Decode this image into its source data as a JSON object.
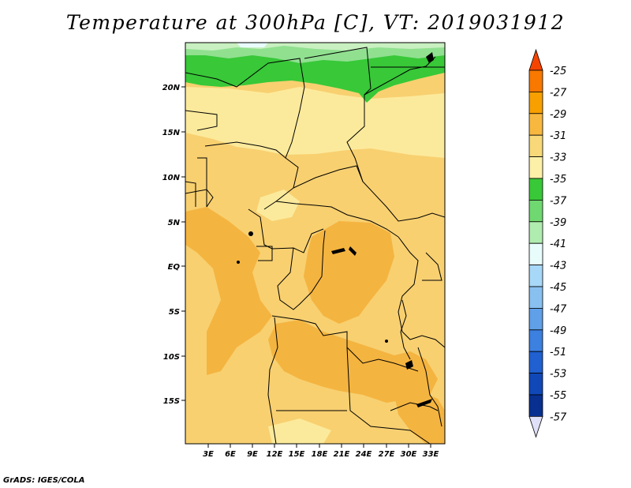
{
  "title": "Temperature at 300hPa [C], VT: 2019031912",
  "credit": "GrADS: IGES/COLA",
  "map": {
    "lat_ticks": [
      "20N",
      "15N",
      "10N",
      "5N",
      "EQ",
      "5S",
      "10S",
      "15S"
    ],
    "lon_ticks": [
      "3E",
      "6E",
      "9E",
      "12E",
      "15E",
      "18E",
      "21E",
      "24E",
      "27E",
      "30E",
      "33E"
    ]
  },
  "colorbar": {
    "labels": [
      "-25",
      "-27",
      "-29",
      "-31",
      "-33",
      "-35",
      "-37",
      "-39",
      "-41",
      "-43",
      "-45",
      "-47",
      "-49",
      "-51",
      "-53",
      "-55",
      "-57"
    ],
    "colors": [
      "#f54400",
      "#f87800",
      "#f8a000",
      "#f8b840",
      "#f8d878",
      "#fcf0a8",
      "#38c838",
      "#70d870",
      "#b0ecb0",
      "#e8fcfc",
      "#a8d8f8",
      "#88c0f0",
      "#5fa0e8",
      "#3c80e0",
      "#2060d0",
      "#1048b8",
      "#083090",
      "#080870"
    ],
    "top_arrow_color": "#f54400",
    "bottom_arrow_color": "#e0e0f8"
  },
  "palette": {
    "warm_dark": "#f4b440",
    "warm_mid": "#f8d070",
    "warm_light": "#fcea9c",
    "cold_green": "#38c838",
    "light_green": "#90e090",
    "pale_green": "#c8f0c0",
    "pale_cyan": "#e8fcfc"
  }
}
